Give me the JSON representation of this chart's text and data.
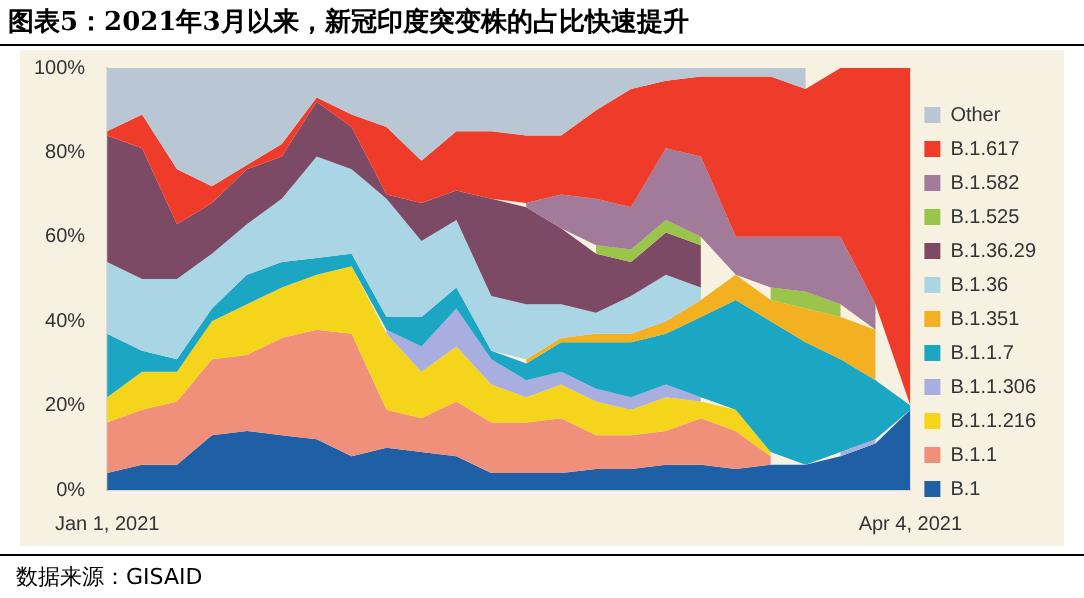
{
  "chart_data": {
    "type": "area",
    "title": "图表5：2021年3月以来，新冠印度突变株的占比快速提升",
    "annotations": [
      "数据来源：GISAID"
    ],
    "categories": [
      "Jan 1, 2021",
      null,
      null,
      null,
      null,
      null,
      null,
      null,
      null,
      null,
      null,
      null,
      null,
      null,
      null,
      null,
      null,
      null,
      null,
      null,
      null,
      null,
      null,
      "Apr 4, 2021"
    ],
    "stacked": true,
    "ylim": [
      0,
      100
    ],
    "yticks": [
      {
        "value": 0,
        "label": "0%"
      },
      {
        "value": 20,
        "label": "20%"
      },
      {
        "value": 40,
        "label": "40%"
      },
      {
        "value": 60,
        "label": "60%"
      },
      {
        "value": 80,
        "label": "80%"
      },
      {
        "value": 100,
        "label": "100%"
      }
    ],
    "grid": false,
    "legend": "right",
    "series": [
      {
        "name": "B.1",
        "color": "#1f5fa6",
        "values": [
          4,
          6,
          6,
          13,
          14,
          13,
          12,
          8,
          10,
          9,
          8,
          4,
          4,
          4,
          5,
          5,
          6,
          6,
          5,
          6,
          6,
          8,
          11,
          19
        ]
      },
      {
        "name": "B.1.1",
        "color": "#f0907a",
        "values": [
          12,
          13,
          15,
          18,
          18,
          23,
          26,
          29,
          9,
          8,
          13,
          12,
          12,
          13,
          8,
          8,
          8,
          11,
          9,
          2,
          null,
          null,
          null,
          null
        ]
      },
      {
        "name": "B.1.1.216",
        "color": "#f5d51c",
        "values": [
          6,
          9,
          7,
          9,
          12,
          12,
          13,
          16,
          18,
          11,
          13,
          9,
          6,
          8,
          8,
          6,
          8,
          4,
          5,
          1,
          null,
          null,
          null,
          null
        ]
      },
      {
        "name": "B.1.1.306",
        "color": "#a9aee0",
        "values": [
          null,
          null,
          null,
          null,
          null,
          null,
          null,
          null,
          1,
          6,
          9,
          6,
          4,
          3,
          3,
          3,
          3,
          1,
          null,
          null,
          null,
          1,
          1,
          null
        ]
      },
      {
        "name": "B.1.1.7",
        "color": "#1ba6c4",
        "values": [
          15,
          5,
          3,
          3,
          7,
          6,
          4,
          3,
          3,
          7,
          5,
          2,
          4,
          7,
          11,
          13,
          12,
          19,
          26,
          31,
          29,
          22,
          14,
          1
        ]
      },
      {
        "name": "B.1.351",
        "color": "#f3b020",
        "values": [
          null,
          null,
          null,
          null,
          null,
          null,
          null,
          null,
          null,
          null,
          null,
          null,
          1,
          1,
          2,
          2,
          3,
          4,
          6,
          5,
          8,
          10,
          12,
          null
        ]
      },
      {
        "name": "B.1.36",
        "color": "#a9d5e5",
        "values": [
          17,
          17,
          19,
          13,
          12,
          15,
          24,
          20,
          28,
          18,
          16,
          13,
          13,
          8,
          5,
          9,
          11,
          3,
          null,
          null,
          null,
          null,
          null,
          null
        ]
      },
      {
        "name": "B.1.36.29",
        "color": "#7d4a66",
        "values": [
          30,
          31,
          13,
          12,
          13,
          10,
          13,
          10,
          1,
          9,
          7,
          23,
          23,
          18,
          14,
          8,
          10,
          10,
          null,
          null,
          null,
          null,
          null,
          null
        ]
      },
      {
        "name": "B.1.525",
        "color": "#9ac44a",
        "values": [
          null,
          null,
          null,
          null,
          null,
          null,
          null,
          null,
          null,
          null,
          null,
          null,
          null,
          null,
          2,
          3,
          3,
          2,
          null,
          3,
          4,
          3,
          null,
          null
        ]
      },
      {
        "name": "B.1.582",
        "color": "#a27b9a",
        "values": [
          null,
          null,
          null,
          null,
          null,
          null,
          null,
          null,
          null,
          null,
          null,
          null,
          1,
          8,
          11,
          10,
          17,
          19,
          9,
          12,
          13,
          16,
          6,
          null
        ]
      },
      {
        "name": "B.1.617",
        "color": "#ee3b2a",
        "values": [
          1,
          8,
          13,
          4,
          1,
          3,
          1,
          3,
          16,
          10,
          14,
          16,
          16,
          14,
          21,
          28,
          16,
          19,
          38,
          38,
          35,
          40,
          56,
          80
        ]
      },
      {
        "name": "Other",
        "color": "#b9c6d4",
        "values": [
          15,
          11,
          24,
          28,
          23,
          18,
          7,
          11,
          14,
          22,
          15,
          15,
          16,
          16,
          10,
          5,
          3,
          2,
          2,
          2,
          5,
          null,
          null,
          null
        ]
      }
    ]
  }
}
